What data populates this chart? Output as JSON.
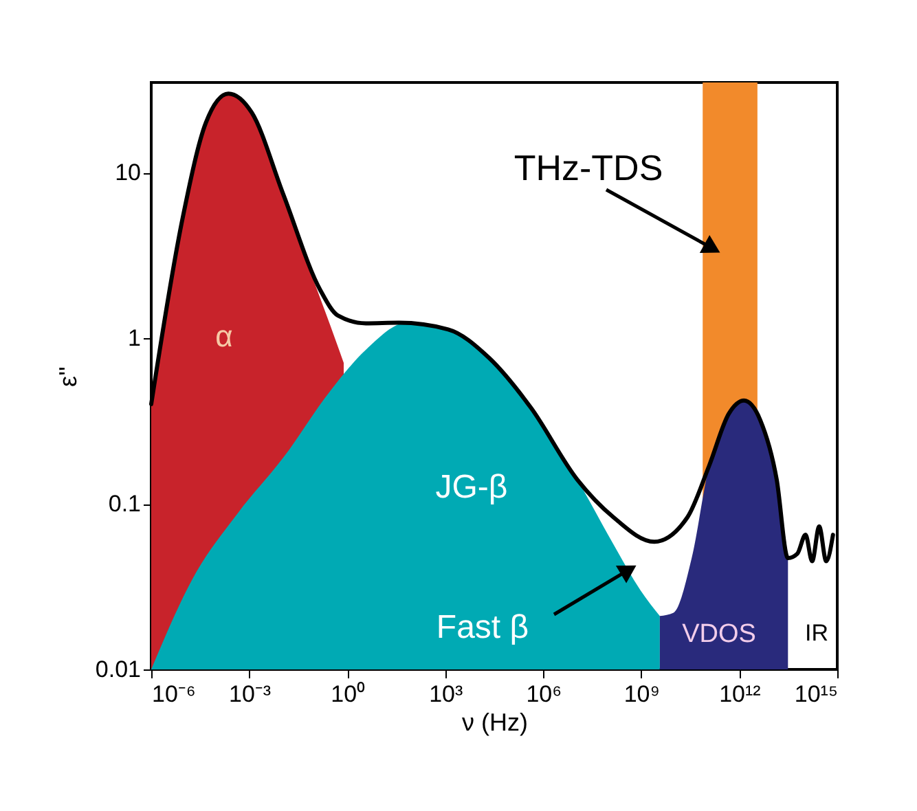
{
  "chart_data": {
    "type": "area",
    "xlabel": "ν (Hz)",
    "ylabel": "ε''",
    "log": "xy",
    "grid": false,
    "legend": false,
    "line_style": "solid",
    "xlim": [
      1e-06,
      1000000000000000.0
    ],
    "ylim": [
      0.01,
      35
    ],
    "xticks": [
      {
        "value": 1e-06,
        "label": "10⁻⁶"
      },
      {
        "value": 0.001,
        "label": "10⁻³"
      },
      {
        "value": 1,
        "label": "10⁰"
      },
      {
        "value": 1000.0,
        "label": "10³"
      },
      {
        "value": 1000000.0,
        "label": "10⁶"
      },
      {
        "value": 1000000000.0,
        "label": "10⁹"
      },
      {
        "value": 1000000000000.0,
        "label": "10¹²"
      },
      {
        "value": 1000000000000000.0,
        "label": "10¹⁵"
      }
    ],
    "yticks": [
      0.01,
      0.1,
      1,
      10
    ],
    "bands": [
      {
        "axis": "x",
        "from": 76000000000.0,
        "to": 3600000000000.0,
        "color": "#f28a2b"
      }
    ],
    "series": [
      {
        "type": "area",
        "name": "α",
        "color": "#c8232b",
        "x": [
          1e-06,
          9.3e-06,
          4.7e-05,
          0.00023,
          0.0012,
          0.011,
          0.076,
          0.3,
          0.78
        ],
        "values": [
          0.45,
          5.4,
          20,
          30,
          23,
          7.4,
          2.5,
          1.2,
          0.71
        ]
      },
      {
        "type": "area",
        "name": "JG-β",
        "color": "#00aab4",
        "x": [
          1e-06,
          1.8e-05,
          0.00045,
          0.011,
          0.3,
          3.7,
          68,
          1230,
          22000.0,
          420000.0,
          11000000.0,
          140000000.0,
          950000000.0,
          3700000000.0
        ],
        "values": [
          0.01,
          0.035,
          0.088,
          0.19,
          0.48,
          0.85,
          1.24,
          1.13,
          0.76,
          0.38,
          0.14,
          0.057,
          0.03,
          0.021
        ]
      },
      {
        "type": "area",
        "name": "VDOS",
        "color": "#292a7c",
        "x": [
          3700000000.0,
          9800000000.0,
          35000000000.0,
          120000000000.0,
          480000000000.0,
          1400000000000.0,
          4400000000000.0,
          14000000000000.0,
          31000000000000.0
        ],
        "values": [
          0.021,
          0.022,
          0.047,
          0.17,
          0.35,
          0.42,
          0.32,
          0.14,
          0.047
        ]
      },
      {
        "type": "line",
        "color": "#000000",
        "x": [
          1e-06,
          9.3e-06,
          4.7e-05,
          0.00023,
          0.0012,
          0.011,
          0.15,
          0.52,
          3.7,
          38,
          1230,
          22000.0,
          420000.0,
          11000000.0,
          140000000.0,
          2500000000.0,
          26000000000.0,
          120000000000.0,
          480000000000.0,
          1400000000000.0,
          4400000000000.0,
          14000000000000.0,
          31000000000000.0,
          60000000000000.0,
          107000000000000.0,
          170000000000000.0,
          280000000000000.0,
          460000000000000.0,
          740000000000000.0
        ],
        "values": [
          0.4,
          5.4,
          20,
          30,
          23,
          7.4,
          1.95,
          1.37,
          1.23,
          1.24,
          1.13,
          0.76,
          0.38,
          0.14,
          0.083,
          0.059,
          0.083,
          0.17,
          0.35,
          0.42,
          0.32,
          0.14,
          0.047,
          0.05,
          0.065,
          0.045,
          0.073,
          0.045,
          0.065
        ]
      }
    ],
    "annotations": [
      "Fast β",
      "IR",
      "THz-TDS"
    ]
  }
}
